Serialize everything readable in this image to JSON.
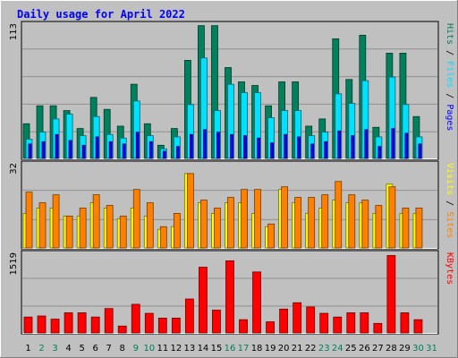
{
  "colors": {
    "background": "#c0c0c0",
    "panel": "#c0c0c0",
    "title": "#0000ff",
    "gridline": "#909090",
    "hits": "#00805c",
    "files": "#00e0ff",
    "pages": "#0000ff",
    "visits": "#ffff00",
    "sites": "#ff8000",
    "kbytes": "#ff0000",
    "weekend_label": "#00805c",
    "weekday_label": "#000000"
  },
  "chart_data": {
    "type": "bar",
    "title": "Daily usage for April 2022",
    "days": [
      "1",
      "2",
      "3",
      "4",
      "5",
      "6",
      "7",
      "8",
      "9",
      "10",
      "11",
      "12",
      "13",
      "14",
      "15",
      "16",
      "17",
      "18",
      "19",
      "20",
      "21",
      "22",
      "23",
      "24",
      "25",
      "26",
      "27",
      "28",
      "29",
      "30",
      "31"
    ],
    "weekend_days": [
      "2",
      "3",
      "9",
      "10",
      "16",
      "17",
      "23",
      "24",
      "30",
      "31"
    ],
    "panels": [
      {
        "id": "hits-files-pages",
        "ymax_label": "113",
        "ymax": 113,
        "legend": [
          {
            "name": "Pages",
            "color_key": "pages"
          },
          {
            "name": "Files",
            "color_key": "files"
          },
          {
            "name": "Hits",
            "color_key": "hits"
          }
        ],
        "series": [
          {
            "name": "Hits",
            "color_key": "hits",
            "values": [
              29,
              44,
              44,
              40,
              25,
              51,
              41,
              27,
              62,
              29,
              11,
              25,
              82,
              111,
              111,
              76,
              64,
              61,
              44,
              64,
              64,
              27,
              33,
              100,
              66,
              103,
              26,
              88,
              88,
              35,
              0
            ]
          },
          {
            "name": "Files",
            "color_key": "files",
            "values": [
              16,
              22,
              33,
              37,
              19,
              35,
              20,
              17,
              48,
              19,
              8,
              18,
              45,
              84,
              40,
              62,
              55,
              55,
              34,
              40,
              40,
              19,
              22,
              54,
              46,
              65,
              18,
              68,
              45,
              18,
              0
            ]
          },
          {
            "name": "Pages",
            "color_key": "pages",
            "values": [
              12,
              14,
              20,
              15,
              11,
              18,
              14,
              12,
              22,
              14,
              6,
              10,
              20,
              24,
              22,
              20,
              19,
              17,
              13,
              20,
              18,
              12,
              14,
              23,
              19,
              24,
              10,
              25,
              21,
              12,
              0
            ]
          }
        ]
      },
      {
        "id": "visits-sites",
        "ymax_label": "32",
        "ymax": 32,
        "legend": [
          {
            "name": "Sites",
            "color_key": "sites"
          },
          {
            "name": "Visits",
            "color_key": "visits"
          }
        ],
        "series": [
          {
            "name": "Visits",
            "color_key": "visits",
            "values": [
              13,
              15,
              15,
              12,
              12,
              17,
              15,
              11,
              15,
              12,
              7,
              8,
              28,
              17,
              13,
              17,
              17,
              13,
              8,
              22,
              17,
              13,
              15,
              18,
              17,
              17,
              13,
              24,
              13,
              13,
              0
            ]
          },
          {
            "name": "Sites",
            "color_key": "sites",
            "values": [
              21,
              17,
              20,
              12,
              15,
              20,
              16,
              12,
              22,
              17,
              8,
              13,
              28,
              18,
              15,
              19,
              22,
              22,
              9,
              23,
              19,
              19,
              20,
              25,
              20,
              18,
              16,
              23,
              15,
              15,
              0
            ]
          }
        ]
      },
      {
        "id": "kbytes",
        "ymax_label": "1519",
        "ymax": 1519,
        "legend": [
          {
            "name": "KBytes",
            "color_key": "kbytes"
          }
        ],
        "series": [
          {
            "name": "KBytes",
            "color_key": "kbytes",
            "values": [
              300,
              320,
              260,
              380,
              380,
              300,
              460,
              130,
              540,
              370,
              280,
              280,
              640,
              1240,
              430,
              1360,
              250,
              1150,
              210,
              450,
              570,
              490,
              370,
              300,
              380,
              380,
              180,
              1460,
              380,
              250,
              0
            ]
          }
        ]
      }
    ]
  }
}
